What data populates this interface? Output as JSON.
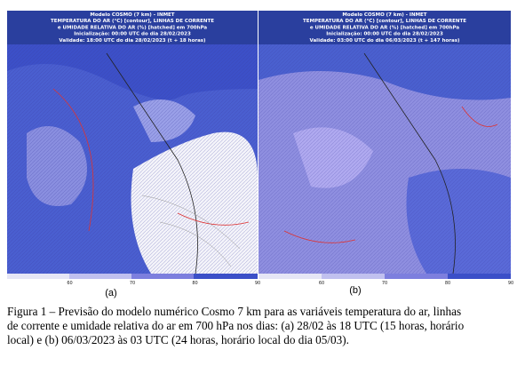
{
  "panels": [
    {
      "header": [
        "Modelo COSMO (7 km) - INMET",
        "TEMPERATURA DO AR (°C) [contour], LINHAS DE CORRENTE",
        "e UMIDADE RELATIVA DO AR (%) [hatched] em 700hPa",
        "Inicialização: 00:00 UTC do dia 28/02/2023",
        "Validade: 18:00 UTC do dia 28/02/2023 (t + 18 horas)"
      ],
      "colorbar_labels": [
        "60",
        "70",
        "80",
        "90"
      ],
      "label": "(a)"
    },
    {
      "header": [
        "Modelo COSMO (7 km) - INMET",
        "TEMPERATURA DO AR (°C) [contour], LINHAS DE CORRENTE",
        "e UMIDADE RELATIVA DO AR (%) [hatched] em 700hPa",
        "Inicialização: 00:00 UTC do dia 28/02/2023",
        "Validade: 03:00 UTC do dia 06/03/2023 (t + 147 horas)"
      ],
      "colorbar_labels": [
        "60",
        "70",
        "80",
        "90"
      ],
      "label": "(b)"
    }
  ],
  "caption": [
    "Figura 1 – Previsão do modelo numérico Cosmo 7 km para as variáveis temperatura do ar, linhas",
    "de corrente e umidade relativa do ar em 700 hPa nos dias: (a) 28/02 às 18 UTC (15 horas, horário",
    "local) e (b) 06/03/2023 às 03 UTC (24 horas, horário local do dia 05/03)."
  ]
}
